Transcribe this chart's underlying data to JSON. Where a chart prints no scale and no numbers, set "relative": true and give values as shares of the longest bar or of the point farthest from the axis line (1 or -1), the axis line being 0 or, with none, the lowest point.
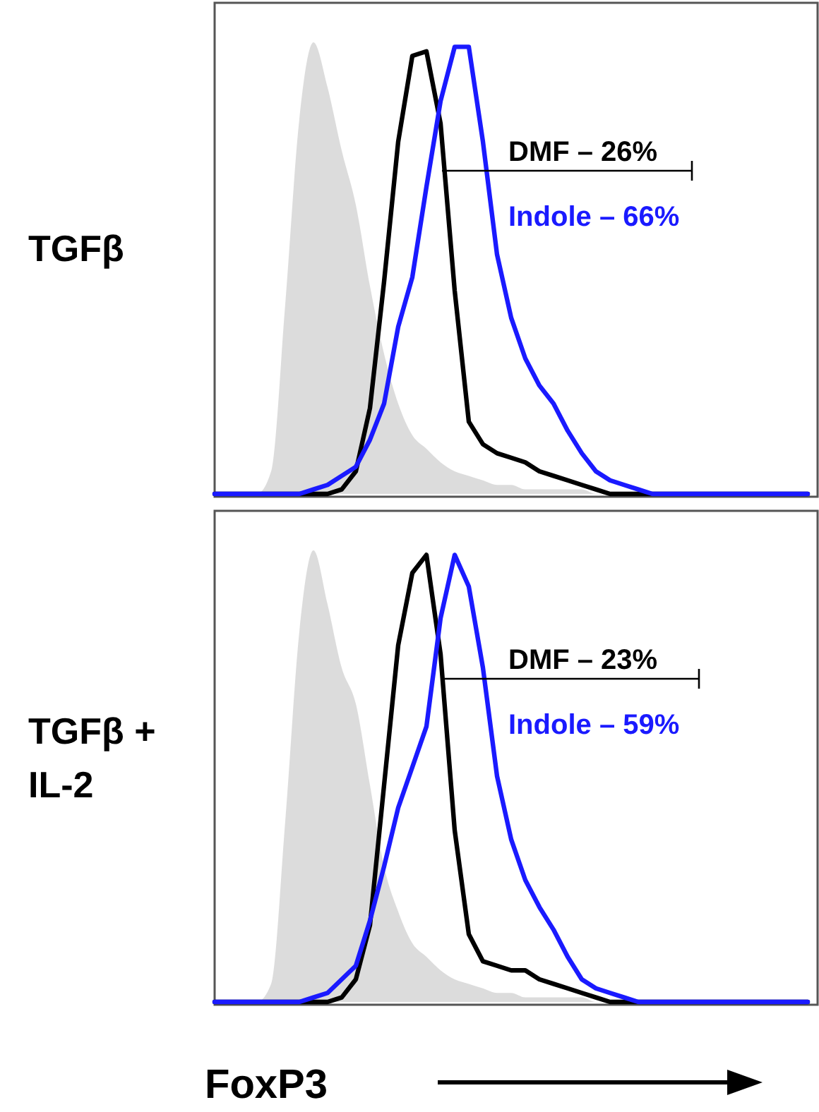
{
  "chart_data": [
    {
      "type": "line",
      "relative": true,
      "ylabel": "TGFβ",
      "tick_labels": false,
      "categories": [
        null,
        null,
        null,
        null,
        null,
        null,
        null,
        null,
        null,
        null,
        null,
        null,
        null,
        null,
        null,
        null,
        null,
        null,
        null,
        null,
        null,
        null,
        null,
        null,
        null,
        null,
        null,
        null,
        null,
        null,
        null,
        null,
        null,
        null,
        null,
        null,
        null,
        null,
        null,
        null,
        null,
        null,
        null
      ],
      "series": [
        {
          "type": "area",
          "color": "#bfbfbf",
          "values": [
            0,
            0,
            0,
            0,
            0.05,
            0.42,
            0.83,
            1,
            0.9,
            0.76,
            0.64,
            0.46,
            0.31,
            0.2,
            0.13,
            0.1,
            0.07,
            0.05,
            0.04,
            0.03,
            0.02,
            0.02,
            0.01,
            0.01,
            0.01,
            0.01,
            0.01,
            0,
            0,
            0,
            0,
            0,
            0,
            0,
            0,
            0,
            0,
            0,
            0,
            0,
            0,
            0,
            0
          ]
        },
        {
          "name": "DMF – 26%",
          "color": "#000000",
          "values": [
            0,
            0,
            0,
            0,
            0,
            0,
            0,
            0,
            0,
            0.01,
            0.05,
            0.19,
            0.47,
            0.78,
            0.97,
            0.98,
            0.82,
            0.45,
            0.16,
            0.11,
            0.09,
            0.08,
            0.07,
            0.05,
            0.04,
            0.03,
            0.02,
            0.01,
            0,
            0,
            0,
            0,
            0,
            0,
            0,
            0,
            0,
            0,
            0,
            0,
            0,
            0,
            0
          ]
        },
        {
          "name": "Indole – 66%",
          "color": "#1a1aff",
          "values": [
            0,
            0,
            0,
            0,
            0,
            0,
            0,
            0.01,
            0.02,
            0.04,
            0.06,
            0.12,
            0.2,
            0.37,
            0.48,
            0.68,
            0.87,
            0.99,
            0.99,
            0.78,
            0.53,
            0.39,
            0.3,
            0.24,
            0.2,
            0.14,
            0.09,
            0.05,
            0.03,
            0.02,
            0.01,
            0,
            0,
            0,
            0,
            0,
            0,
            0,
            0,
            0,
            0,
            0,
            0
          ]
        }
      ]
    },
    {
      "type": "line",
      "relative": true,
      "ylabel": "TGFβ + IL-2",
      "xlabel": "FoxP3",
      "tick_labels": false,
      "categories": [
        null,
        null,
        null,
        null,
        null,
        null,
        null,
        null,
        null,
        null,
        null,
        null,
        null,
        null,
        null,
        null,
        null,
        null,
        null,
        null,
        null,
        null,
        null,
        null,
        null,
        null,
        null,
        null,
        null,
        null,
        null,
        null,
        null,
        null,
        null,
        null,
        null,
        null,
        null,
        null,
        null,
        null,
        null
      ],
      "series": [
        {
          "type": "area",
          "color": "#bfbfbf",
          "values": [
            0,
            0,
            0,
            0,
            0.04,
            0.4,
            0.82,
            1,
            0.88,
            0.74,
            0.66,
            0.48,
            0.3,
            0.2,
            0.13,
            0.1,
            0.07,
            0.05,
            0.04,
            0.03,
            0.02,
            0.02,
            0.01,
            0.01,
            0.01,
            0.01,
            0.01,
            0,
            0,
            0,
            0,
            0,
            0,
            0,
            0,
            0,
            0,
            0,
            0,
            0,
            0,
            0,
            0
          ]
        },
        {
          "name": "DMF – 23%",
          "color": "#000000",
          "values": [
            0,
            0,
            0,
            0,
            0,
            0,
            0,
            0,
            0,
            0.01,
            0.05,
            0.17,
            0.48,
            0.79,
            0.95,
            0.99,
            0.77,
            0.38,
            0.15,
            0.09,
            0.08,
            0.07,
            0.07,
            0.05,
            0.04,
            0.03,
            0.02,
            0.01,
            0,
            0,
            0,
            0,
            0,
            0,
            0,
            0,
            0,
            0,
            0,
            0,
            0,
            0,
            0
          ]
        },
        {
          "name": "Indole – 59%",
          "color": "#1a1aff",
          "values": [
            0,
            0,
            0,
            0,
            0,
            0,
            0,
            0.01,
            0.02,
            0.05,
            0.08,
            0.18,
            0.3,
            0.43,
            0.52,
            0.61,
            0.85,
            0.99,
            0.92,
            0.74,
            0.5,
            0.36,
            0.27,
            0.21,
            0.16,
            0.1,
            0.05,
            0.03,
            0.02,
            0.01,
            0,
            0,
            0,
            0,
            0,
            0,
            0,
            0,
            0,
            0,
            0,
            0,
            0
          ]
        }
      ]
    }
  ]
}
